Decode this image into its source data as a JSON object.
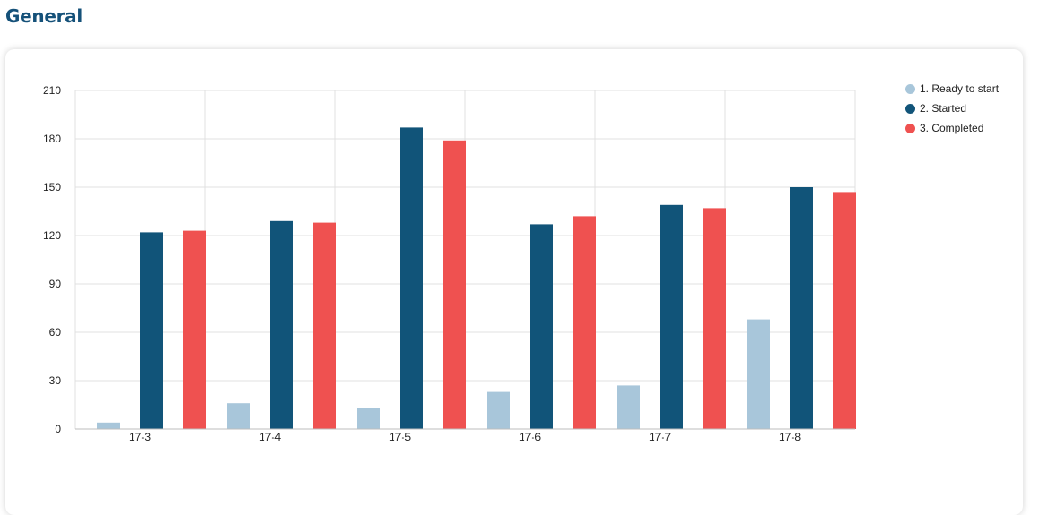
{
  "page": {
    "title": "General"
  },
  "chart_data": {
    "type": "bar",
    "categories": [
      "17-3",
      "17-4",
      "17-5",
      "17-6",
      "17-7",
      "17-8"
    ],
    "series": [
      {
        "name": "1. Ready to start",
        "color": "#a8c6da",
        "values": [
          4,
          16,
          13,
          23,
          27,
          68
        ]
      },
      {
        "name": "2. Started",
        "color": "#115479",
        "values": [
          122,
          129,
          187,
          127,
          139,
          150
        ]
      },
      {
        "name": "3. Completed",
        "color": "#ef5150",
        "values": [
          123,
          128,
          179,
          132,
          137,
          147
        ]
      }
    ],
    "ylim": [
      0,
      210
    ],
    "yticks": [
      0,
      30,
      60,
      90,
      120,
      150,
      180,
      210
    ],
    "grid": true,
    "legend_position": "top-right"
  }
}
